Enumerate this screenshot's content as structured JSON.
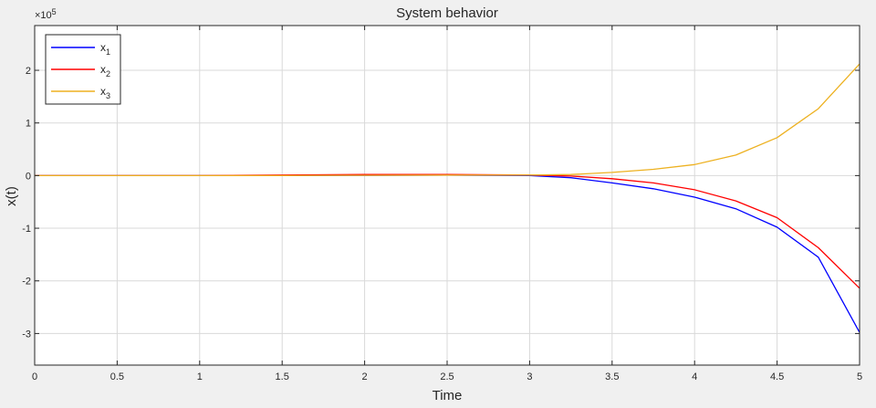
{
  "chart_data": {
    "type": "line",
    "title": "System behavior",
    "xlabel": "Time",
    "ylabel": "x(t)",
    "xlim": [
      0,
      5
    ],
    "ylim": [
      -3.6,
      2.85
    ],
    "y_exponent_label": {
      "base": "×10",
      "exponent": "5"
    },
    "x_ticks": [
      0,
      0.5,
      1,
      1.5,
      2,
      2.5,
      3,
      3.5,
      4,
      4.5,
      5
    ],
    "x_tick_labels": [
      "0",
      "0.5",
      "1",
      "1.5",
      "2",
      "2.5",
      "3",
      "3.5",
      "4",
      "4.5",
      "5"
    ],
    "y_ticks": [
      -3,
      -2,
      -1,
      0,
      1,
      2
    ],
    "y_tick_labels": [
      "-3",
      "-2",
      "-1",
      "0",
      "1",
      "2"
    ],
    "grid": true,
    "legend_placement": "top-left",
    "x": [
      0,
      0.5,
      1,
      1.5,
      2,
      2.5,
      3,
      3.25,
      3.5,
      3.75,
      4,
      4.25,
      4.5,
      4.75,
      5
    ],
    "series": [
      {
        "name": "x",
        "subscript": "1",
        "color": "#0000ff",
        "values": [
          0,
          0,
          0,
          0,
          0.005,
          0.008,
          0,
          -0.04,
          -0.14,
          -0.25,
          -0.41,
          -0.63,
          -0.98,
          -1.55,
          -2.98
        ]
      },
      {
        "name": "x",
        "subscript": "2",
        "color": "#ff0000",
        "values": [
          0,
          0,
          0,
          0.01,
          0.02,
          0.02,
          0.01,
          -0.01,
          -0.06,
          -0.14,
          -0.27,
          -0.48,
          -0.8,
          -1.37,
          -2.14
        ]
      },
      {
        "name": "x",
        "subscript": "3",
        "color": "#edb120",
        "values": [
          0,
          0,
          0,
          0,
          0.005,
          0.008,
          0.01,
          0.02,
          0.06,
          0.12,
          0.21,
          0.39,
          0.72,
          1.27,
          2.12
        ]
      }
    ]
  }
}
